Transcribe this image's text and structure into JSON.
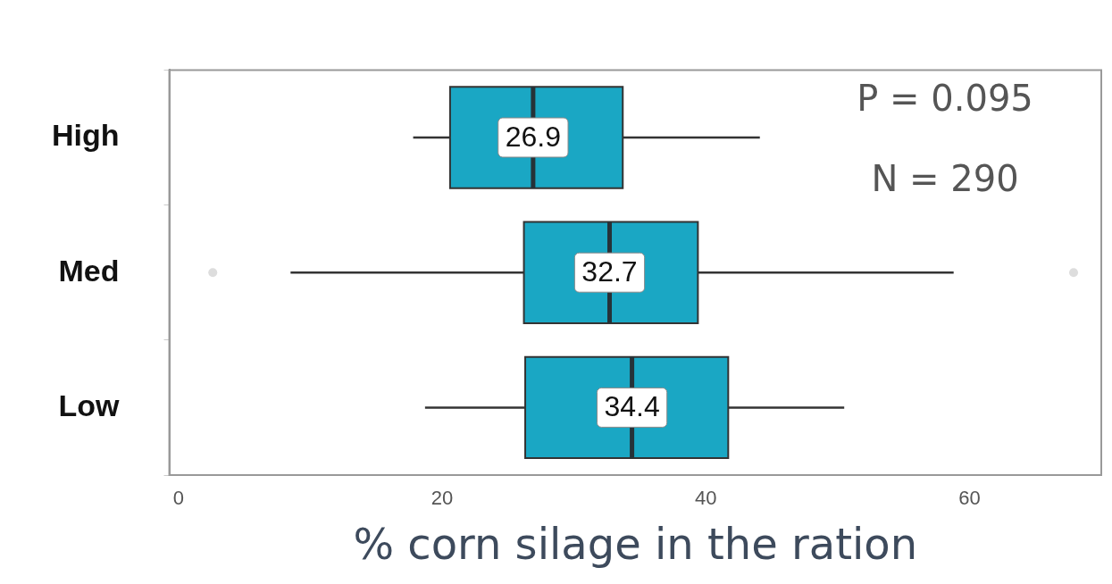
{
  "chart_data": {
    "type": "box",
    "orientation": "horizontal",
    "xlabel": "% corn silage in the ration",
    "categories": [
      "High",
      "Med",
      "Low"
    ],
    "color": "#1aa7c4",
    "boxes": [
      {
        "low": 17.8,
        "q1": 20.6,
        "median": 26.9,
        "q3": 33.7,
        "high": 44.1
      },
      {
        "low": 8.5,
        "q1": 26.2,
        "median": 32.7,
        "q3": 39.4,
        "high": 58.8,
        "outliers": [
          2.6,
          67.9
        ]
      },
      {
        "low": 18.7,
        "q1": 26.3,
        "median": 34.4,
        "q3": 41.7,
        "high": 50.5
      }
    ],
    "value_labels": [
      "26.9",
      "32.7",
      "34.4"
    ],
    "xlim": [
      -0.7,
      70
    ],
    "xticks": [
      0,
      20,
      40,
      60
    ],
    "grid": false,
    "legend": false,
    "annotations": [
      "P = 0.095",
      "N = 290"
    ]
  }
}
